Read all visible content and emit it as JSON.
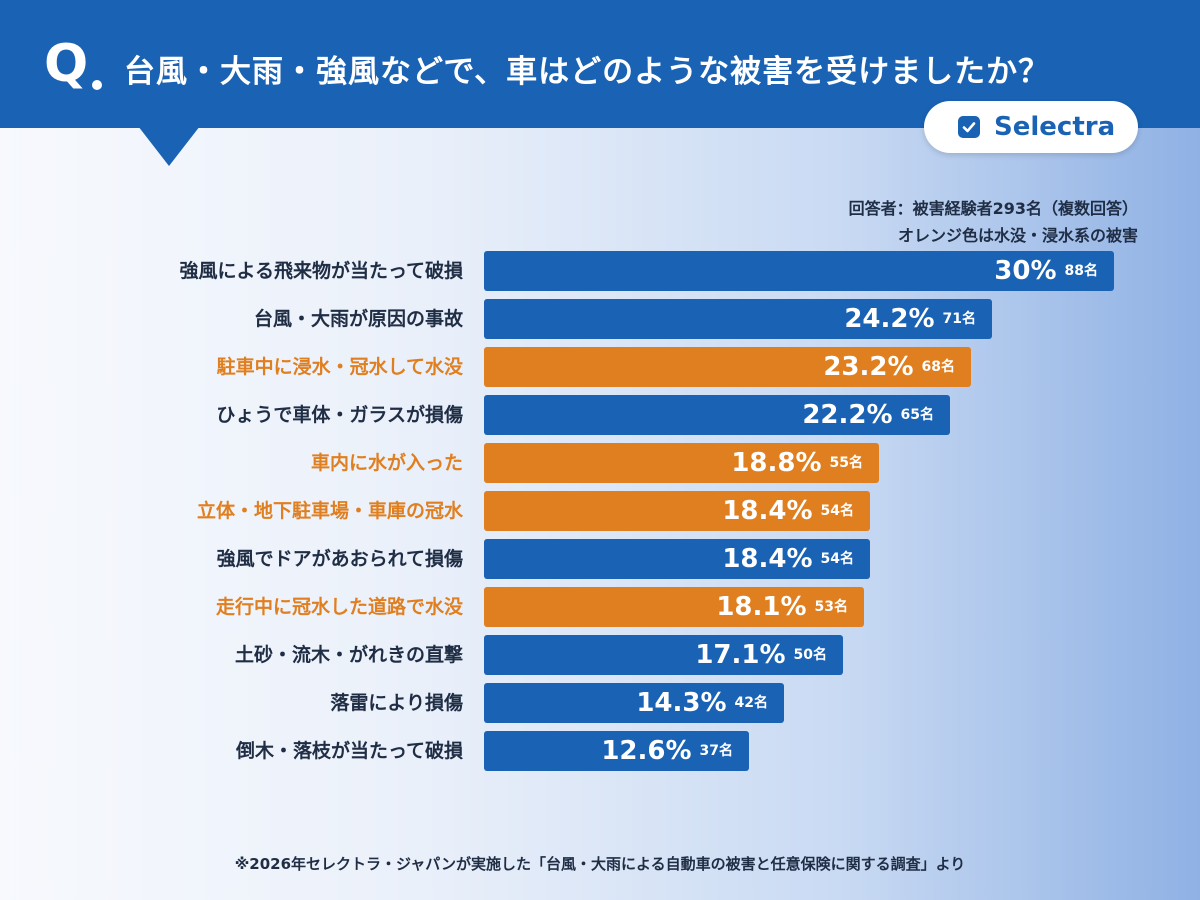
{
  "header": {
    "q_mark": "Q",
    "question": "台風・大雨・強風などで、車はどのような被害を受けましたか？"
  },
  "brand": {
    "name": "Selectra",
    "icon": "check-icon"
  },
  "notes": {
    "respondents": "回答者：被害経験者293名（複数回答）",
    "legend": "オレンジ色は水没・浸水系の被害"
  },
  "colors": {
    "blue": "#1a62b4",
    "orange": "#e07f1f",
    "dark_text": "#1f2d45"
  },
  "chart_data": {
    "type": "bar",
    "orientation": "horizontal",
    "xlim": [
      0,
      30
    ],
    "categories": [
      "強風による飛来物が当たって破損",
      "台風・大雨が原因の事故",
      "駐車中に浸水・冠水して水没",
      "ひょうで車体・ガラスが損傷",
      "車内に水が入った",
      "立体・地下駐車場・車庫の冠水",
      "強風でドアがあおられて損傷",
      "走行中に冠水した道路で水没",
      "土砂・流木・がれきの直撃",
      "落雷により損傷",
      "倒木・落枝が当たって破損"
    ],
    "values": [
      30,
      24.2,
      23.2,
      22.2,
      18.8,
      18.4,
      18.4,
      18.1,
      17.1,
      14.3,
      12.6
    ],
    "value_labels": [
      "30%",
      "24.2%",
      "23.2%",
      "22.2%",
      "18.8%",
      "18.4%",
      "18.4%",
      "18.1%",
      "17.1%",
      "14.3%",
      "12.6%"
    ],
    "counts": [
      "88名",
      "71名",
      "68名",
      "65名",
      "55名",
      "54名",
      "54名",
      "53名",
      "50名",
      "42名",
      "37名"
    ],
    "flood_related": [
      false,
      false,
      true,
      false,
      true,
      true,
      false,
      true,
      false,
      false,
      false
    ]
  },
  "footer": "※2026年セレクトラ・ジャパンが実施した「台風・大雨による自動車の被害と任意保険に関する調査」より"
}
